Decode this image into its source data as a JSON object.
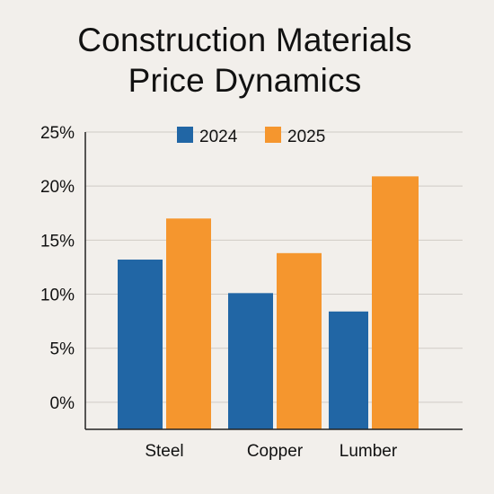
{
  "chart_data": {
    "type": "bar",
    "title_lines": [
      "Construction Materials",
      "Price Dynamics"
    ],
    "categories": [
      "Steel",
      "Copper",
      "Lumber"
    ],
    "series": [
      {
        "name": "2024",
        "values": [
          13.2,
          10.1,
          8.4
        ]
      },
      {
        "name": "2025",
        "values": [
          17.0,
          13.8,
          20.9
        ]
      }
    ],
    "ylim": [
      -2.5,
      25
    ],
    "yticks": [
      0,
      5,
      10,
      15,
      20,
      25
    ],
    "ytick_labels": [
      "0%",
      "5%",
      "10%",
      "15%",
      "20%",
      "25%"
    ],
    "xlabel": "",
    "ylabel": "",
    "grid": true,
    "legend_position": "top-center",
    "colors": {
      "2024": "#2166a5",
      "2025": "#f5962e",
      "grid": "#cfcbc6",
      "axis": "#222222"
    }
  }
}
